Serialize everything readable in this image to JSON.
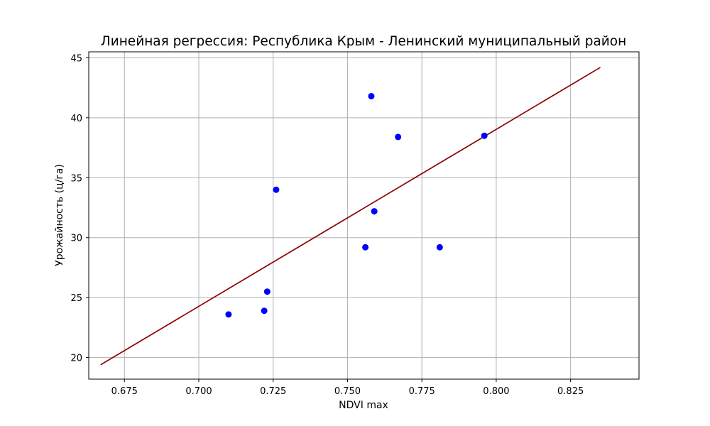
{
  "chart_data": {
    "type": "scatter",
    "title": "Линейная регрессия: Республика Крым - Ленинский муниципальный район",
    "xlabel": "NDVI max",
    "ylabel": "Урожайность (ц/га)",
    "xlim": [
      0.663,
      0.848
    ],
    "ylim": [
      18.2,
      45.5
    ],
    "xticks": [
      0.675,
      0.7,
      0.725,
      0.75,
      0.775,
      0.8,
      0.825
    ],
    "xtick_labels": [
      "0.675",
      "0.700",
      "0.725",
      "0.750",
      "0.775",
      "0.800",
      "0.825"
    ],
    "yticks": [
      20,
      25,
      30,
      35,
      40,
      45
    ],
    "ytick_labels": [
      "20",
      "25",
      "30",
      "35",
      "40",
      "45"
    ],
    "grid": true,
    "series": [
      {
        "kind": "scatter",
        "color": "#0000ff",
        "points": [
          {
            "x": 0.71,
            "y": 23.6
          },
          {
            "x": 0.722,
            "y": 23.9
          },
          {
            "x": 0.723,
            "y": 25.5
          },
          {
            "x": 0.726,
            "y": 34.0
          },
          {
            "x": 0.756,
            "y": 29.2
          },
          {
            "x": 0.758,
            "y": 41.8
          },
          {
            "x": 0.759,
            "y": 32.2
          },
          {
            "x": 0.767,
            "y": 38.4
          },
          {
            "x": 0.781,
            "y": 29.2
          },
          {
            "x": 0.796,
            "y": 38.5
          }
        ]
      },
      {
        "kind": "line",
        "color": "#8b0000",
        "points": [
          {
            "x": 0.667,
            "y": 19.4
          },
          {
            "x": 0.835,
            "y": 44.2
          }
        ]
      }
    ]
  }
}
